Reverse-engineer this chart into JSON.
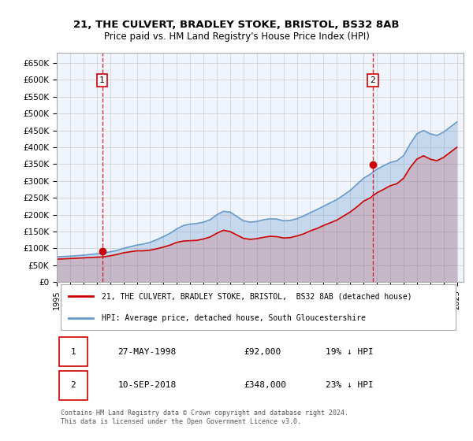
{
  "title1": "21, THE CULVERT, BRADLEY STOKE, BRISTOL, BS32 8AB",
  "title2": "Price paid vs. HM Land Registry's House Price Index (HPI)",
  "legend_line1": "21, THE CULVERT, BRADLEY STOKE, BRISTOL,  BS32 8AB (detached house)",
  "legend_line2": "HPI: Average price, detached house, South Gloucestershire",
  "purchase1_label": "1",
  "purchase1_date": "27-MAY-1998",
  "purchase1_price": "£92,000",
  "purchase1_hpi": "19% ↓ HPI",
  "purchase2_label": "2",
  "purchase2_date": "10-SEP-2018",
  "purchase2_price": "£348,000",
  "purchase2_hpi": "23% ↓ HPI",
  "footnote": "Contains HM Land Registry data © Crown copyright and database right 2024.\nThis data is licensed under the Open Government Licence v3.0.",
  "purchase1_x": 1998.4,
  "purchase1_y": 92000,
  "purchase2_x": 2018.7,
  "purchase2_y": 348000,
  "hpi_color": "#6699cc",
  "price_color": "#cc0000",
  "dashed_line_color": "#cc0000",
  "box_color": "#cc0000",
  "background_color": "#e8eef8",
  "plot_bg": "#f0f4fc",
  "ylim": [
    0,
    680000
  ],
  "xlim": [
    1995,
    2025.5
  ],
  "yticks": [
    0,
    50000,
    100000,
    150000,
    200000,
    250000,
    300000,
    350000,
    400000,
    450000,
    500000,
    550000,
    600000,
    650000
  ],
  "xticks": [
    1995,
    1996,
    1997,
    1998,
    1999,
    2000,
    2001,
    2002,
    2003,
    2004,
    2005,
    2006,
    2007,
    2008,
    2009,
    2010,
    2011,
    2012,
    2013,
    2014,
    2015,
    2016,
    2017,
    2018,
    2019,
    2020,
    2021,
    2022,
    2023,
    2024,
    2025
  ],
  "hpi_years": [
    1995,
    1995.5,
    1996,
    1996.5,
    1997,
    1997.5,
    1998,
    1998.5,
    1999,
    1999.5,
    2000,
    2000.5,
    2001,
    2001.5,
    2002,
    2002.5,
    2003,
    2003.5,
    2004,
    2004.5,
    2005,
    2005.5,
    2006,
    2006.5,
    2007,
    2007.5,
    2008,
    2008.5,
    2009,
    2009.5,
    2010,
    2010.5,
    2011,
    2011.5,
    2012,
    2012.5,
    2013,
    2013.5,
    2014,
    2014.5,
    2015,
    2015.5,
    2016,
    2016.5,
    2017,
    2017.5,
    2018,
    2018.5,
    2019,
    2019.5,
    2020,
    2020.5,
    2021,
    2021.5,
    2022,
    2022.5,
    2023,
    2023.5,
    2024,
    2024.5,
    2025
  ],
  "hpi_values": [
    75000,
    76000,
    77000,
    78500,
    80000,
    82000,
    84000,
    86000,
    90000,
    94000,
    100000,
    105000,
    110000,
    113000,
    118000,
    126000,
    135000,
    145000,
    158000,
    168000,
    172000,
    174000,
    178000,
    185000,
    200000,
    210000,
    208000,
    195000,
    182000,
    178000,
    180000,
    185000,
    188000,
    187000,
    182000,
    183000,
    188000,
    196000,
    206000,
    215000,
    225000,
    235000,
    245000,
    258000,
    272000,
    290000,
    308000,
    320000,
    335000,
    345000,
    355000,
    360000,
    375000,
    410000,
    440000,
    450000,
    440000,
    435000,
    445000,
    460000,
    475000
  ],
  "price_years": [
    1995,
    1995.5,
    1996,
    1996.5,
    1997,
    1997.5,
    1998,
    1998.5,
    1999,
    1999.5,
    2000,
    2000.5,
    2001,
    2001.5,
    2002,
    2002.5,
    2003,
    2003.5,
    2004,
    2004.5,
    2005,
    2005.5,
    2006,
    2006.5,
    2007,
    2007.5,
    2008,
    2008.5,
    2009,
    2009.5,
    2010,
    2010.5,
    2011,
    2011.5,
    2012,
    2012.5,
    2013,
    2013.5,
    2014,
    2014.5,
    2015,
    2015.5,
    2016,
    2016.5,
    2017,
    2017.5,
    2018,
    2018.5,
    2019,
    2019.5,
    2020,
    2020.5,
    2021,
    2021.5,
    2022,
    2022.5,
    2023,
    2023.5,
    2024,
    2024.5,
    2025
  ],
  "price_values": [
    68000,
    69000,
    70000,
    71000,
    72000,
    73000,
    74000,
    75000,
    78000,
    82000,
    87000,
    90000,
    93000,
    93000,
    95000,
    99000,
    104000,
    110000,
    118000,
    122000,
    123000,
    124000,
    128000,
    134000,
    145000,
    154000,
    150000,
    140000,
    130000,
    127000,
    129000,
    133000,
    136000,
    135000,
    131000,
    132000,
    137000,
    143000,
    152000,
    159000,
    168000,
    176000,
    184000,
    196000,
    208000,
    223000,
    240000,
    250000,
    265000,
    275000,
    286000,
    292000,
    308000,
    340000,
    365000,
    375000,
    365000,
    360000,
    370000,
    385000,
    400000
  ]
}
